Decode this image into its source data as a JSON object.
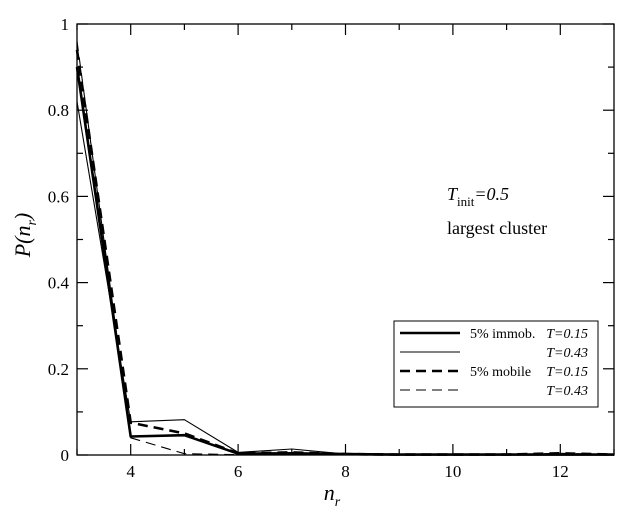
{
  "chart_data": {
    "type": "line",
    "xlabel": "n_r",
    "ylabel": "P(n_r)",
    "xlim": [
      3,
      13
    ],
    "ylim": [
      0,
      1
    ],
    "x_ticks": [
      4,
      6,
      8,
      10,
      12
    ],
    "x_tick_labels": [
      "4",
      "6",
      "8",
      "10",
      "12"
    ],
    "y_ticks": [
      0,
      0.2,
      0.4,
      0.6,
      0.8,
      1
    ],
    "y_tick_labels": [
      "0",
      "0.2",
      "0.4",
      "0.6",
      "0.8",
      "1"
    ],
    "x": [
      3,
      4,
      5,
      6,
      7,
      8,
      9,
      10,
      11,
      12,
      13
    ],
    "series": [
      {
        "group": "5% immob.",
        "name": "T=0.15",
        "style": "solid-thick",
        "values": [
          0.9,
          0.043,
          0.046,
          0.003,
          0.004,
          0.002,
          0.001,
          0.001,
          0.001,
          0.001,
          0.001
        ]
      },
      {
        "group": "",
        "name": "T=0.43",
        "style": "solid-thin",
        "values": [
          0.82,
          0.077,
          0.082,
          0.006,
          0.014,
          0.002,
          0.001,
          0.001,
          0.001,
          0.001,
          0.001
        ]
      },
      {
        "group": "5% mobile",
        "name": "T=0.15",
        "style": "dashed-thick",
        "values": [
          0.94,
          0.075,
          0.05,
          0.004,
          0.006,
          0.002,
          0.001,
          0.001,
          0.001,
          0.004,
          0.001
        ]
      },
      {
        "group": "",
        "name": "T=0.43",
        "style": "dashed-thin",
        "values": [
          0.96,
          0.04,
          0.003,
          0.001,
          0.001,
          0.001,
          0.001,
          0.001,
          0.001,
          0.004,
          0.001
        ]
      }
    ],
    "legend": {
      "position": "lower-right",
      "entries": [
        {
          "group": "5% immob.",
          "label": "T=0.15"
        },
        {
          "group": "",
          "label": "T=0.43"
        },
        {
          "group": "5% mobile",
          "label": "T=0.15"
        },
        {
          "group": "",
          "label": "T=0.43"
        }
      ]
    },
    "annotations": {
      "tinit_symbol": "T",
      "tinit_sub": "init",
      "tinit_value": "=0.5",
      "cluster_label": "largest cluster"
    },
    "grid": false,
    "colors": {
      "line": "#000000",
      "background": "#ffffff"
    }
  }
}
